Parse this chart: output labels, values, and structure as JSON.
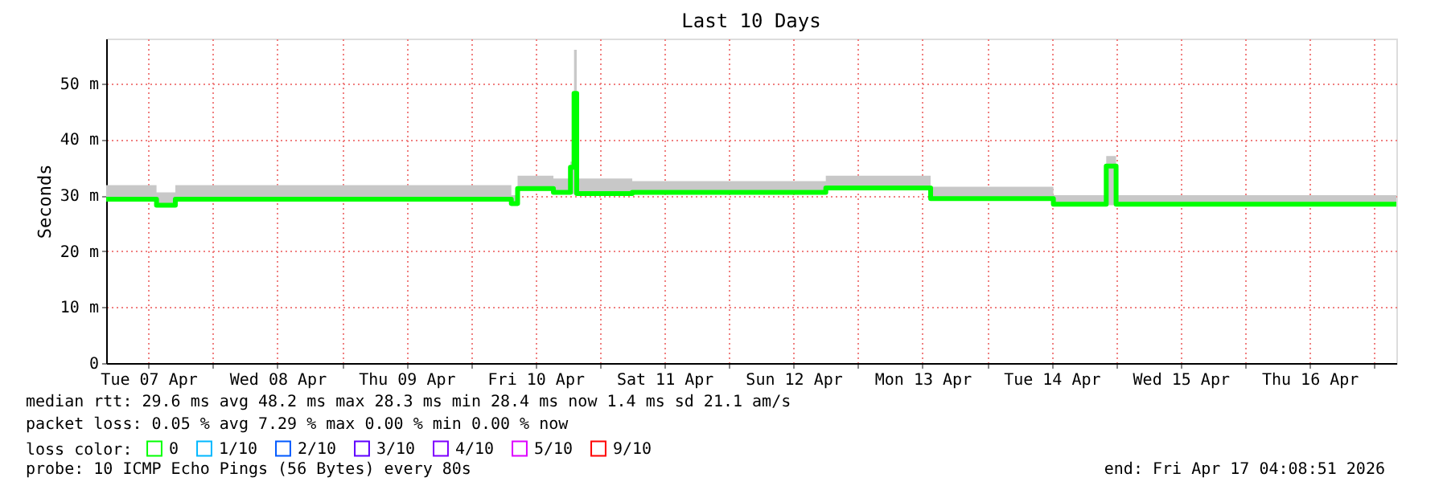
{
  "chart_data": {
    "type": "step",
    "title": "Last 10 Days",
    "ylabel": "Seconds",
    "legend_title": "loss color:",
    "legend": "bottom",
    "grid": true,
    "x": [
      "2026-04-07T04:08",
      "2026-04-07T13:30",
      "2026-04-07T17:00",
      "2026-04-10T07:30",
      "2026-04-10T08:40",
      "2026-04-10T15:20",
      "2026-04-10T18:30",
      "2026-04-10T19:10",
      "2026-04-10T19:40",
      "2026-04-11T06:00",
      "2026-04-12T18:00",
      "2026-04-13T13:30",
      "2026-04-14T12:20",
      "2026-04-14T22:10",
      "2026-04-15T00:00",
      "2026-04-17T04:08"
    ],
    "series": [
      {
        "name": "0",
        "color": "#00ff00",
        "values": [
          29.3,
          28.2,
          29.3,
          28.5,
          31.2,
          30.5,
          35,
          48.2,
          30.3,
          30.5,
          31.3,
          29.4,
          28.4,
          35.2,
          28.4,
          28.4
        ],
        "lower": [
          29,
          28,
          29,
          28.2,
          30.8,
          30.2,
          30.2,
          30.2,
          30,
          30.2,
          31,
          29,
          28.2,
          28.2,
          28.2,
          28.2
        ],
        "upper": [
          31.8,
          30.5,
          31.8,
          30,
          33.5,
          33,
          36,
          56,
          33,
          32.5,
          33.5,
          31.5,
          30,
          37,
          30,
          30
        ]
      },
      {
        "name": "1/10",
        "color": "#00b8ff",
        "values": [
          null,
          null,
          null,
          null,
          null,
          null,
          null,
          null,
          null,
          null,
          null,
          null,
          null,
          null,
          null,
          null
        ]
      },
      {
        "name": "2/10",
        "color": "#0059ff",
        "values": [
          null,
          null,
          null,
          null,
          null,
          null,
          null,
          null,
          null,
          null,
          null,
          null,
          null,
          null,
          null,
          null
        ]
      },
      {
        "name": "3/10",
        "color": "#5e00ff",
        "values": [
          null,
          null,
          null,
          null,
          null,
          null,
          null,
          null,
          null,
          null,
          null,
          null,
          null,
          null,
          null,
          null
        ]
      },
      {
        "name": "4/10",
        "color": "#7e00ff",
        "values": [
          null,
          null,
          null,
          null,
          null,
          null,
          null,
          null,
          null,
          null,
          null,
          null,
          null,
          null,
          null,
          null
        ]
      },
      {
        "name": "5/10",
        "color": "#dd00ff",
        "values": [
          null,
          null,
          null,
          null,
          null,
          null,
          null,
          null,
          null,
          null,
          null,
          null,
          null,
          null,
          null,
          null
        ]
      },
      {
        "name": "9/10",
        "color": "#ff0000",
        "values": [
          null,
          null,
          null,
          null,
          null,
          null,
          null,
          null,
          null,
          null,
          null,
          null,
          null,
          null,
          null,
          null
        ]
      }
    ],
    "xlim": [
      "2026-04-07T04:08",
      "2026-04-17T04:08"
    ],
    "xticks": [
      {
        "value": "2026-04-07T12:00",
        "label": "Tue 07 Apr"
      },
      {
        "value": "2026-04-08T00:00",
        "label": null
      },
      {
        "value": "2026-04-08T12:00",
        "label": "Wed 08 Apr"
      },
      {
        "value": "2026-04-09T00:00",
        "label": null
      },
      {
        "value": "2026-04-09T12:00",
        "label": "Thu 09 Apr"
      },
      {
        "value": "2026-04-10T00:00",
        "label": null
      },
      {
        "value": "2026-04-10T12:00",
        "label": "Fri 10 Apr"
      },
      {
        "value": "2026-04-11T00:00",
        "label": null
      },
      {
        "value": "2026-04-11T12:00",
        "label": "Sat 11 Apr"
      },
      {
        "value": "2026-04-12T00:00",
        "label": null
      },
      {
        "value": "2026-04-12T12:00",
        "label": "Sun 12 Apr"
      },
      {
        "value": "2026-04-13T00:00",
        "label": null
      },
      {
        "value": "2026-04-13T12:00",
        "label": "Mon 13 Apr"
      },
      {
        "value": "2026-04-14T00:00",
        "label": null
      },
      {
        "value": "2026-04-14T12:00",
        "label": "Tue 14 Apr"
      },
      {
        "value": "2026-04-15T00:00",
        "label": null
      },
      {
        "value": "2026-04-15T12:00",
        "label": "Wed 15 Apr"
      },
      {
        "value": "2026-04-16T00:00",
        "label": null
      },
      {
        "value": "2026-04-16T12:00",
        "label": "Thu 16 Apr"
      },
      {
        "value": "2026-04-17T00:00",
        "label": null
      }
    ],
    "ylim": [
      0,
      58
    ],
    "yticks": [
      0,
      {
        "value": 10,
        "label": "10 m"
      },
      {
        "value": 20,
        "label": "20 m"
      },
      {
        "value": 30,
        "label": "30 m"
      },
      {
        "value": 40,
        "label": "40 m"
      },
      {
        "value": 50,
        "label": "50 m"
      }
    ],
    "annotations": [
      "median rtt:  29.6 ms avg  48.2 ms max  28.3 ms min  28.4 ms now  1.4 ms sd  21.1   am/s",
      "packet loss: 0.05 % avg  7.29 % max  0.00 % min  0.00 % now",
      "probe:       10 ICMP Echo Pings (56 Bytes) every 80s",
      "end: Fri Apr 17 04:08:51 2026"
    ]
  }
}
